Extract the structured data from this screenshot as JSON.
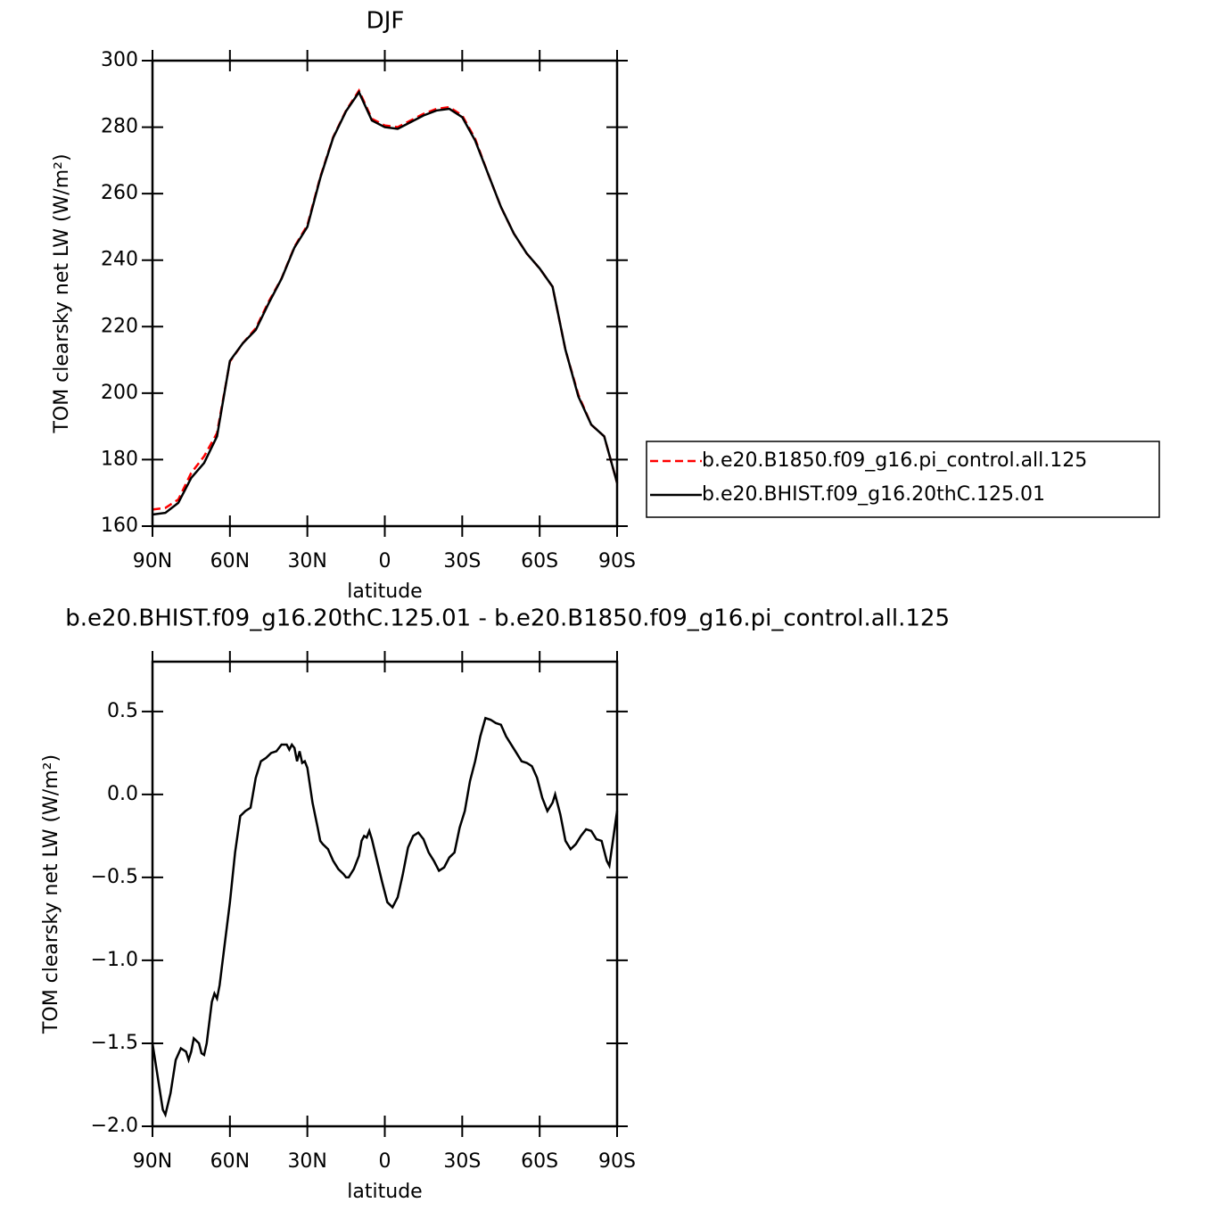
{
  "chart_data": [
    {
      "type": "line",
      "title": "DJF",
      "xlabel": "latitude",
      "ylabel": "TOM clearsky net LW (W/m²)",
      "x": [
        90,
        85,
        80,
        75,
        70,
        65,
        60,
        55,
        50,
        45,
        40,
        35,
        30,
        25,
        20,
        15,
        10,
        5,
        0,
        -5,
        -10,
        -15,
        -20,
        -25,
        -30,
        -35,
        -40,
        -45,
        -50,
        -55,
        -60,
        -65,
        -70,
        -75,
        -80,
        -85,
        -90
      ],
      "series": [
        {
          "name": "b.e20.B1850.f09_g16.pi_control.all.125",
          "color": "#ff0000",
          "linestyle": "dashed",
          "values": [
            165,
            165.5,
            168,
            176,
            181,
            188,
            209.5,
            215,
            219.5,
            227.5,
            234.5,
            244,
            250.5,
            265,
            277,
            285,
            291,
            282.5,
            280.5,
            280,
            282,
            284,
            285.5,
            286,
            283.5,
            276.5,
            266,
            256,
            248,
            242,
            237.5,
            232,
            213,
            199.5,
            190.5,
            187,
            173
          ]
        },
        {
          "name": "b.e20.BHIST.f09_g16.20thC.125.01",
          "color": "#000000",
          "linestyle": "solid",
          "values": [
            163.5,
            164,
            167,
            174.5,
            179,
            187,
            209.7,
            215,
            219,
            227,
            234.4,
            243.8,
            250,
            264.7,
            276.8,
            284.8,
            290.5,
            282,
            280,
            279.5,
            281.5,
            283.5,
            285,
            285.5,
            283,
            276,
            266,
            256,
            248,
            242,
            237.5,
            232,
            213,
            199,
            190.5,
            187,
            173
          ]
        }
      ],
      "xlim": [
        90,
        -90
      ],
      "xticks": [
        {
          "value": 90,
          "label": "90N"
        },
        {
          "value": 60,
          "label": "60N"
        },
        {
          "value": 30,
          "label": "30N"
        },
        0,
        {
          "value": -30,
          "label": "30S"
        },
        {
          "value": -60,
          "label": "60S"
        },
        {
          "value": -90,
          "label": "90S"
        }
      ],
      "ylim": [
        160,
        300
      ],
      "yticks": [
        160,
        180,
        200,
        220,
        240,
        260,
        280,
        300
      ],
      "legend": "right"
    },
    {
      "type": "line",
      "title": "b.e20.BHIST.f09_g16.20thC.125.01 - b.e20.B1850.f09_g16.pi_control.all.125",
      "xlabel": "latitude",
      "ylabel": "TOM clearsky net LW (W/m²)",
      "x": [
        90,
        88,
        86,
        85,
        83,
        81,
        79,
        77,
        76,
        75,
        74,
        72,
        71,
        70,
        69,
        67,
        66,
        65,
        64,
        62,
        60,
        58,
        56,
        54,
        52,
        50,
        48,
        46,
        44,
        42,
        40,
        38,
        37,
        36,
        35,
        34,
        33,
        32,
        31,
        30,
        28,
        26,
        25,
        24,
        22,
        20,
        18,
        16,
        15,
        14,
        12,
        10,
        9,
        8,
        7,
        6,
        5,
        3,
        1,
        -1,
        -3,
        -5,
        -7,
        -9,
        -11,
        -13,
        -15,
        -17,
        -19,
        -21,
        -23,
        -25,
        -27,
        -29,
        -31,
        -33,
        -35,
        -37,
        -39,
        -41,
        -43,
        -45,
        -47,
        -49,
        -51,
        -53,
        -55,
        -57,
        -59,
        -61,
        -63,
        -65,
        -66,
        -68,
        -70,
        -72,
        -74,
        -76,
        -78,
        -80,
        -82,
        -84,
        -86,
        -87,
        -90
      ],
      "series": [
        {
          "color": "#000000",
          "linestyle": "solid",
          "values": [
            -1.5,
            -1.7,
            -1.9,
            -1.93,
            -1.8,
            -1.6,
            -1.53,
            -1.55,
            -1.6,
            -1.55,
            -1.47,
            -1.5,
            -1.56,
            -1.57,
            -1.5,
            -1.25,
            -1.2,
            -1.23,
            -1.15,
            -0.9,
            -0.65,
            -0.35,
            -0.13,
            -0.1,
            -0.08,
            0.1,
            0.2,
            0.22,
            0.25,
            0.26,
            0.3,
            0.3,
            0.27,
            0.3,
            0.28,
            0.2,
            0.26,
            0.19,
            0.2,
            0.16,
            -0.05,
            -0.2,
            -0.28,
            -0.3,
            -0.33,
            -0.4,
            -0.45,
            -0.48,
            -0.5,
            -0.5,
            -0.45,
            -0.37,
            -0.28,
            -0.25,
            -0.26,
            -0.22,
            -0.27,
            -0.4,
            -0.53,
            -0.65,
            -0.68,
            -0.62,
            -0.48,
            -0.32,
            -0.25,
            -0.23,
            -0.27,
            -0.35,
            -0.4,
            -0.46,
            -0.44,
            -0.38,
            -0.35,
            -0.2,
            -0.1,
            0.08,
            0.2,
            0.35,
            0.46,
            0.45,
            0.43,
            0.42,
            0.35,
            0.3,
            0.25,
            0.2,
            0.19,
            0.17,
            0.1,
            -0.02,
            -0.1,
            -0.05,
            0.0,
            -0.12,
            -0.28,
            -0.33,
            -0.3,
            -0.25,
            -0.21,
            -0.22,
            -0.27,
            -0.28,
            -0.4,
            -0.43,
            -0.1
          ]
        }
      ],
      "xlim": [
        90,
        -90
      ],
      "xticks": [
        {
          "value": 90,
          "label": "90N"
        },
        {
          "value": 60,
          "label": "60N"
        },
        {
          "value": 30,
          "label": "30N"
        },
        0,
        {
          "value": -30,
          "label": "30S"
        },
        {
          "value": -60,
          "label": "60S"
        },
        {
          "value": -90,
          "label": "90S"
        }
      ],
      "ylim": [
        -2.0,
        0.8
      ],
      "yticks": [
        {
          "value": -2.0,
          "label": "−2.0"
        },
        {
          "value": -1.5,
          "label": "−1.5"
        },
        {
          "value": -1.0,
          "label": "−1.0"
        },
        {
          "value": -0.5,
          "label": "−0.5"
        },
        {
          "value": 0.0,
          "label": "0.0"
        },
        0.5
      ]
    }
  ]
}
